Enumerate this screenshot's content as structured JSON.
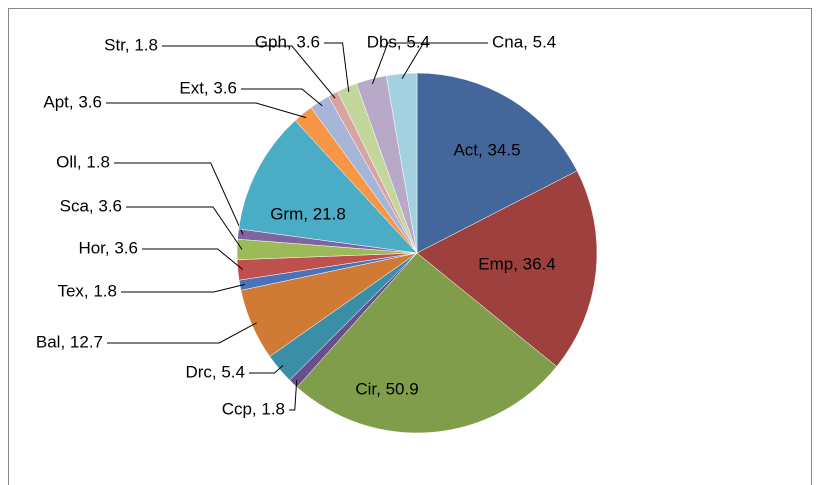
{
  "chart_data": {
    "type": "pie",
    "values": [
      34.5,
      36.4,
      50.9,
      1.8,
      5.4,
      12.7,
      1.8,
      3.6,
      3.6,
      1.8,
      21.8,
      3.6,
      3.6,
      1.8,
      3.6,
      5.4,
      5.4
    ],
    "value_labels": [
      "Act, 34.5",
      "Emp, 36.4",
      "Cir, 50.9",
      "Ccp, 1.8",
      "Drc, 5.4",
      "Bal, 12.7",
      "Tex, 1.8",
      "Hor, 3.6",
      "Sca, 3.6",
      "Oll, 1.8",
      "Grm, 21.8",
      "Apt, 3.6",
      "Ext, 3.6",
      "Str, 1.8",
      "Gph, 3.6",
      "Dbs, 5.4",
      "Cna, 5.4"
    ],
    "colors": [
      "#44679b",
      "#9e413e",
      "#7f9d4a",
      "#6a4f8f",
      "#3a8fa6",
      "#d07b35",
      "#4a73b7",
      "#c0504d",
      "#9bbb59",
      "#8064a2",
      "#4bacc6",
      "#f79646",
      "#a5b6d8",
      "#d9a3a2",
      "#c3d69b",
      "#b8a9c9",
      "#a4d1df"
    ]
  }
}
